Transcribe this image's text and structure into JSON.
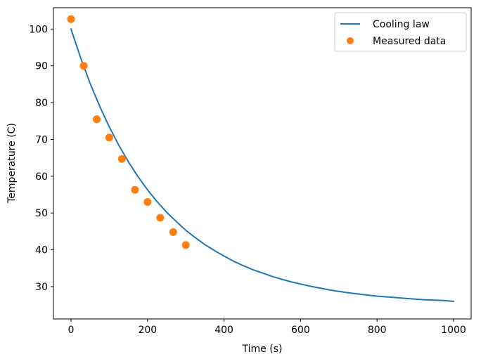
{
  "chart_data": {
    "type": "line",
    "title": "",
    "xlabel": "Time (s)",
    "ylabel": "Temperature (C)",
    "xlim": [
      -46,
      1046
    ],
    "ylim": [
      21.2,
      105.8
    ],
    "grid": false,
    "legend_position": "top-right",
    "x_ticks": [
      0,
      200,
      400,
      600,
      800,
      1000
    ],
    "x_tick_labels": [
      "0",
      "200",
      "400",
      "600",
      "800",
      "1000"
    ],
    "y_ticks": [
      30,
      40,
      50,
      60,
      70,
      80,
      90,
      100
    ],
    "y_tick_labels": [
      "30",
      "40",
      "50",
      "60",
      "70",
      "80",
      "90",
      "100"
    ],
    "series": [
      {
        "name": "Cooling law",
        "kind": "line",
        "color": "#1f77b4",
        "x": [
          0,
          25,
          50,
          75,
          100,
          125,
          150,
          175,
          200,
          225,
          250,
          275,
          300,
          325,
          350,
          375,
          400,
          425,
          450,
          475,
          500,
          525,
          550,
          575,
          600,
          625,
          650,
          675,
          700,
          725,
          750,
          775,
          800,
          825,
          850,
          875,
          900,
          925,
          950,
          975,
          1000
        ],
        "y": [
          100.0,
          92.2,
          85.2,
          79.0,
          73.4,
          68.4,
          63.9,
          59.9,
          56.3,
          53.1,
          50.2,
          47.7,
          45.3,
          43.3,
          41.4,
          39.8,
          38.3,
          36.9,
          35.7,
          34.6,
          33.7,
          32.8,
          32.0,
          31.3,
          30.7,
          30.1,
          29.6,
          29.1,
          28.7,
          28.3,
          28.0,
          27.7,
          27.4,
          27.2,
          27.0,
          26.8,
          26.6,
          26.4,
          26.3,
          26.2,
          26.0
        ]
      },
      {
        "name": "Measured data",
        "kind": "scatter",
        "color": "#ff7f0e",
        "x": [
          0,
          33,
          67,
          100,
          133,
          167,
          200,
          233,
          267,
          300
        ],
        "y": [
          102.7,
          90.0,
          75.5,
          70.5,
          64.7,
          56.3,
          53.0,
          48.7,
          44.8,
          41.3
        ]
      }
    ]
  }
}
